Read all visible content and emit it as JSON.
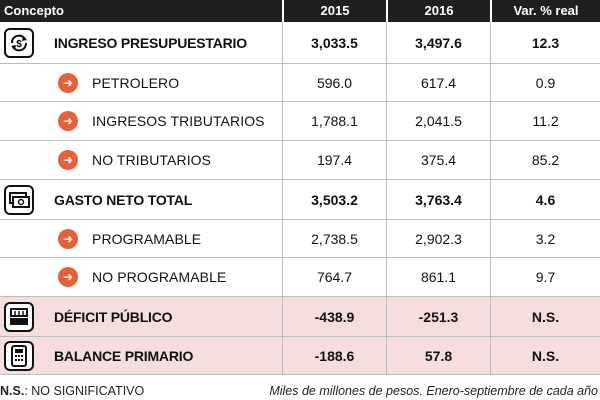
{
  "header": {
    "concepto": "Concepto",
    "y2015": "2015",
    "y2016": "2016",
    "var": "Var. % real"
  },
  "rows": [
    {
      "label": "INGRESO PRESUPUESTARIO",
      "v2015": "3,033.5",
      "v2016": "3,497.6",
      "var": "12.3",
      "icon": "dollar-cycle-icon"
    },
    {
      "label": "PETROLERO",
      "v2015": "596.0",
      "v2016": "617.4",
      "var": "0.9"
    },
    {
      "label": "INGRESOS TRIBUTARIOS",
      "v2015": "1,788.1",
      "v2016": "2,041.5",
      "var": "11.2"
    },
    {
      "label": "NO TRIBUTARIOS",
      "v2015": "197.4",
      "v2016": "375.4",
      "var": "85.2"
    },
    {
      "label": "GASTO NETO TOTAL",
      "v2015": "3,503.2",
      "v2016": "3,763.4",
      "var": "4.6",
      "icon": "money-bills-icon"
    },
    {
      "label": "PROGRAMABLE",
      "v2015": "2,738.5",
      "v2016": "2,902.3",
      "var": "3.2"
    },
    {
      "label": "NO PROGRAMABLE",
      "v2015": "764.7",
      "v2016": "861.1",
      "var": "9.7"
    },
    {
      "label": "DÉFICIT PÚBLICO",
      "v2015": "-438.9",
      "v2016": "-251.3",
      "var": "N.S.",
      "icon": "cash-register-icon"
    },
    {
      "label": "BALANCE PRIMARIO",
      "v2015": "-188.6",
      "v2016": "57.8",
      "var": "N.S.",
      "icon": "calculator-icon"
    }
  ],
  "footer": {
    "note_abbr": "N.S.",
    "note_text": ": NO SIGNIFICATIVO",
    "source": "Miles de millones de pesos. Enero-septiembre de cada año"
  },
  "colors": {
    "accent": "#e8603a",
    "pink": "#f6dede",
    "header": "#1f1f1f"
  }
}
